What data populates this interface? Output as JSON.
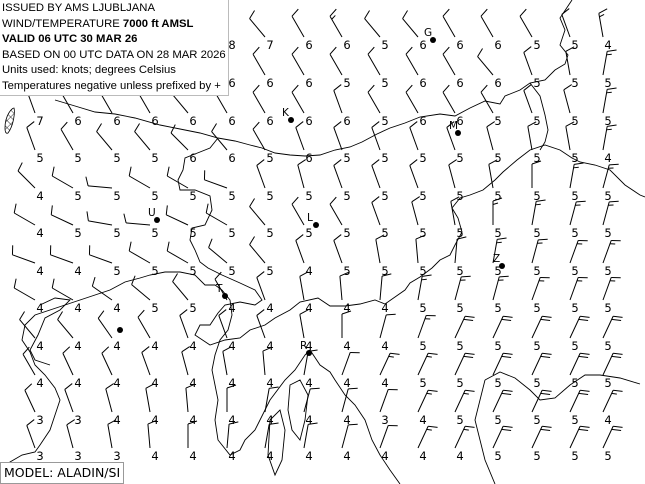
{
  "header": {
    "issued_by": "ISSUED BY AMS LJUBLJANA",
    "level_prefix": "WIND/TEMPERATURE ",
    "level": "7000 ft AMSL",
    "valid": "VALID 06 UTC 30 MAR 26",
    "based_on": "BASED ON 00 UTC DATA ON 28 MAR 2026",
    "units": "Units used: knots; degrees Celsius",
    "temp_note": "Temperatures negative unless prefixed by +"
  },
  "model": "MODEL: ALADIN/SI",
  "stations": [
    {
      "label": "G"
    },
    {
      "label": "K"
    },
    {
      "label": "M"
    },
    {
      "label": "U"
    },
    {
      "label": "L"
    },
    {
      "label": "Z"
    },
    {
      "label": "T"
    },
    {
      "label": "R"
    },
    {
      "label": ""
    }
  ],
  "grid": {
    "temperatures": [
      [
        null,
        null,
        null,
        null,
        null,
        8,
        7,
        6,
        6,
        5,
        6,
        6,
        6,
        5,
        5,
        4
      ],
      [
        null,
        null,
        null,
        null,
        null,
        6,
        6,
        6,
        5,
        5,
        6,
        6,
        6,
        5,
        5,
        5
      ],
      [
        7,
        6,
        6,
        6,
        6,
        6,
        6,
        6,
        6,
        5,
        6,
        6,
        5,
        5,
        5,
        5
      ],
      [
        5,
        5,
        5,
        5,
        6,
        6,
        5,
        6,
        5,
        5,
        5,
        5,
        5,
        5,
        5,
        4
      ],
      [
        4,
        5,
        5,
        5,
        5,
        5,
        5,
        5,
        5,
        5,
        5,
        5,
        5,
        5,
        5,
        5
      ],
      [
        4,
        5,
        5,
        5,
        5,
        5,
        5,
        5,
        5,
        5,
        5,
        5,
        5,
        5,
        5,
        5
      ],
      [
        4,
        4,
        5,
        5,
        5,
        5,
        5,
        4,
        5,
        5,
        5,
        5,
        5,
        5,
        5,
        5
      ],
      [
        4,
        4,
        4,
        5,
        5,
        4,
        4,
        4,
        4,
        4,
        5,
        5,
        5,
        5,
        5,
        5
      ],
      [
        4,
        4,
        4,
        4,
        4,
        4,
        4,
        4,
        4,
        4,
        5,
        5,
        5,
        5,
        5,
        5
      ],
      [
        4,
        4,
        4,
        4,
        4,
        4,
        4,
        4,
        4,
        4,
        5,
        5,
        5,
        5,
        5,
        5
      ],
      [
        3,
        3,
        4,
        4,
        4,
        4,
        4,
        4,
        4,
        3,
        4,
        5,
        5,
        5,
        5,
        4
      ],
      [
        3,
        3,
        3,
        4,
        4,
        4,
        4,
        4,
        4,
        4,
        4,
        4,
        5,
        5,
        5,
        5
      ]
    ],
    "wind_direction_deg": [
      [
        null,
        null,
        null,
        null,
        null,
        320,
        320,
        330,
        330,
        320,
        320,
        330,
        330,
        330,
        340,
        350
      ],
      [
        null,
        null,
        null,
        null,
        null,
        330,
        330,
        330,
        330,
        330,
        330,
        330,
        320,
        340,
        350,
        10
      ],
      [
        340,
        330,
        330,
        330,
        320,
        330,
        330,
        330,
        340,
        330,
        330,
        330,
        330,
        340,
        345,
        10
      ],
      [
        340,
        330,
        320,
        320,
        315,
        320,
        330,
        340,
        340,
        340,
        340,
        340,
        345,
        350,
        350,
        10
      ],
      [
        315,
        300,
        275,
        300,
        300,
        290,
        340,
        345,
        340,
        340,
        340,
        345,
        350,
        0,
        10,
        15
      ],
      [
        300,
        295,
        280,
        275,
        295,
        300,
        320,
        330,
        330,
        340,
        345,
        350,
        0,
        10,
        15,
        15
      ],
      [
        290,
        290,
        290,
        300,
        300,
        310,
        320,
        340,
        340,
        350,
        355,
        5,
        10,
        15,
        20,
        20
      ],
      [
        300,
        300,
        305,
        310,
        320,
        330,
        340,
        350,
        355,
        5,
        10,
        15,
        15,
        20,
        20,
        20
      ],
      [
        320,
        320,
        325,
        330,
        340,
        340,
        340,
        350,
        0,
        15,
        20,
        25,
        25,
        25,
        25,
        25
      ],
      [
        330,
        335,
        335,
        340,
        345,
        350,
        355,
        10,
        20,
        25,
        25,
        25,
        25,
        25,
        25,
        25
      ],
      [
        335,
        340,
        345,
        350,
        355,
        0,
        10,
        15,
        15,
        20,
        25,
        25,
        25,
        25,
        25,
        25
      ],
      [
        340,
        345,
        350,
        355,
        0,
        5,
        10,
        10,
        15,
        20,
        25,
        25,
        25,
        25,
        25,
        25
      ]
    ],
    "wind_speed_kt": [
      [
        null,
        null,
        null,
        null,
        null,
        10,
        10,
        10,
        15,
        10,
        10,
        10,
        10,
        10,
        10,
        15
      ],
      [
        null,
        null,
        null,
        null,
        null,
        10,
        10,
        10,
        10,
        10,
        10,
        10,
        10,
        10,
        10,
        15
      ],
      [
        10,
        10,
        10,
        10,
        10,
        10,
        10,
        10,
        10,
        10,
        10,
        10,
        10,
        10,
        10,
        15
      ],
      [
        10,
        10,
        10,
        10,
        10,
        10,
        10,
        10,
        10,
        10,
        10,
        10,
        10,
        10,
        10,
        15
      ],
      [
        10,
        10,
        10,
        10,
        10,
        10,
        10,
        10,
        10,
        10,
        10,
        10,
        10,
        10,
        15,
        15
      ],
      [
        10,
        10,
        10,
        10,
        10,
        10,
        10,
        10,
        10,
        10,
        10,
        10,
        15,
        15,
        15,
        15
      ],
      [
        10,
        10,
        10,
        10,
        10,
        10,
        10,
        10,
        10,
        10,
        10,
        10,
        15,
        15,
        15,
        15
      ],
      [
        10,
        10,
        10,
        10,
        10,
        10,
        10,
        10,
        10,
        10,
        15,
        15,
        15,
        15,
        15,
        15
      ],
      [
        10,
        10,
        10,
        10,
        10,
        10,
        10,
        10,
        10,
        10,
        15,
        20,
        20,
        20,
        20,
        20
      ],
      [
        10,
        10,
        10,
        10,
        10,
        10,
        10,
        10,
        10,
        15,
        15,
        20,
        20,
        20,
        20,
        20
      ],
      [
        10,
        10,
        10,
        10,
        10,
        10,
        10,
        10,
        10,
        10,
        15,
        15,
        20,
        20,
        20,
        15
      ],
      [
        10,
        10,
        10,
        10,
        10,
        10,
        10,
        10,
        10,
        10,
        15,
        15,
        20,
        20,
        20,
        20
      ]
    ]
  },
  "colors": {
    "lines": "#000000",
    "background": "#ffffff"
  }
}
